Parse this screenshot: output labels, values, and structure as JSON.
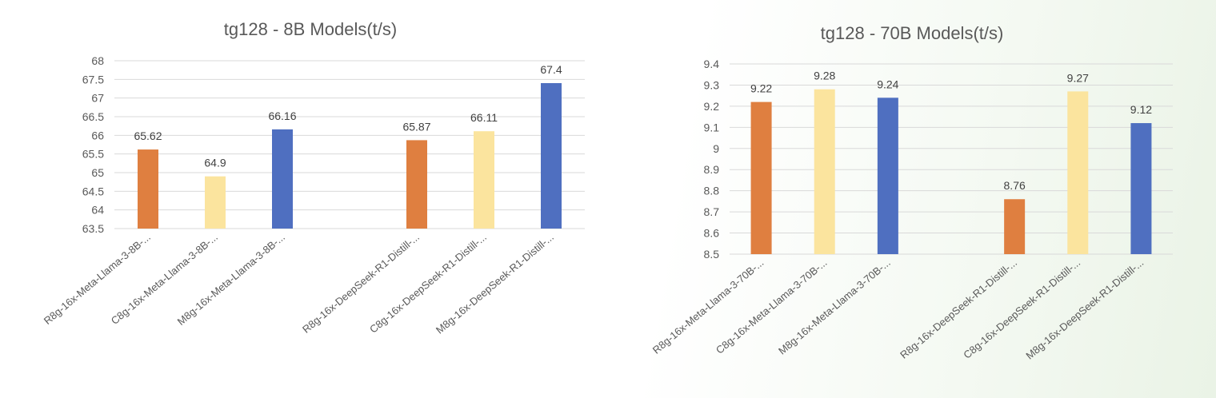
{
  "palette": {
    "orange": "#DF7F40",
    "yellow": "#FBE49E",
    "blue": "#4F6FC0"
  },
  "chart_data": [
    {
      "type": "bar",
      "title": "tg128 - 8B Models(t/s)",
      "xlabel": "",
      "ylabel": "",
      "ylim": [
        63.5,
        68
      ],
      "yticks": [
        63.5,
        64,
        64.5,
        65,
        65.5,
        66,
        66.5,
        67,
        67.5,
        68
      ],
      "ytick_labels": [
        "63.5",
        "64",
        "64.5",
        "65",
        "65.5",
        "66",
        "66.5",
        "67",
        "67.5",
        "68"
      ],
      "grid": true,
      "legend": "none",
      "categories": [
        "R8g-16x-Meta-Llama-3-8B-...",
        "C8g-16x-Meta-Llama-3-8B-...",
        "M8g-16x-Meta-Llama-3-8B-...",
        "",
        "R8g-16x-DeepSeek-R1-Distill-...",
        "C8g-16x-DeepSeek-R1-Distill-...",
        "M8g-16x-DeepSeek-R1-Distill-..."
      ],
      "values": [
        65.62,
        64.9,
        66.16,
        null,
        65.87,
        66.11,
        67.4
      ],
      "value_labels": [
        "65.62",
        "64.9",
        "66.16",
        "",
        "65.87",
        "66.11",
        "67.4"
      ],
      "colors": [
        "#DF7F40",
        "#FBE49E",
        "#4F6FC0",
        "",
        "#DF7F40",
        "#FBE49E",
        "#4F6FC0"
      ]
    },
    {
      "type": "bar",
      "title": "tg128 - 70B Models(t/s)",
      "xlabel": "",
      "ylabel": "",
      "ylim": [
        8.5,
        9.4
      ],
      "yticks": [
        8.5,
        8.6,
        8.7,
        8.8,
        8.9,
        9.0,
        9.1,
        9.2,
        9.3,
        9.4
      ],
      "ytick_labels": [
        "8.5",
        "8.6",
        "8.7",
        "8.8",
        "8.9",
        "9",
        "9.1",
        "9.2",
        "9.3",
        "9.4"
      ],
      "grid": true,
      "legend": "none",
      "categories": [
        "R8g-16x-Meta-Llama-3-70B-...",
        "C8g-16x-Meta-Llama-3-70B-...",
        "M8g-16x-Meta-Llama-3-70B-...",
        "",
        "R8g-16x-DeepSeek-R1-Distill-...",
        "C8g-16x-DeepSeek-R1-Distill-...",
        "M8g-16x-DeepSeek-R1-Distill-..."
      ],
      "values": [
        9.22,
        9.28,
        9.24,
        null,
        8.76,
        9.27,
        9.12
      ],
      "value_labels": [
        "9.22",
        "9.28",
        "9.24",
        "",
        "8.76",
        "9.27",
        "9.12"
      ],
      "colors": [
        "#DF7F40",
        "#FBE49E",
        "#4F6FC0",
        "",
        "#DF7F40",
        "#FBE49E",
        "#4F6FC0"
      ]
    }
  ]
}
